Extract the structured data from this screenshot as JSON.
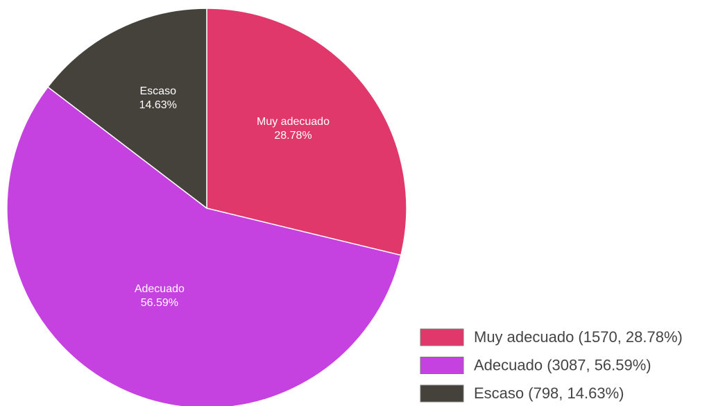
{
  "chart_data": {
    "type": "pie",
    "categories": [
      "Muy adecuado",
      "Adecuado",
      "Escaso"
    ],
    "values": [
      1570,
      3087,
      798
    ],
    "percentages": [
      28.78,
      56.59,
      14.63
    ],
    "percentage_labels": [
      "28.78%",
      "56.59%",
      "14.63%"
    ],
    "legend_labels": [
      "Muy adecuado (1570, 28.78%)",
      "Adecuado (3087, 56.59%)",
      "Escaso (798, 14.63%)"
    ],
    "colors": [
      "#e0386b",
      "#c541e0",
      "#45423c"
    ],
    "legend_position": "bottom-right"
  }
}
